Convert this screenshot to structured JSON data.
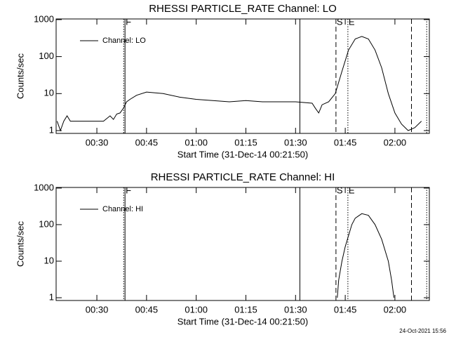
{
  "footer": "24-Oct-2021 15:56",
  "chart_data": [
    {
      "type": "line",
      "title": "RHESSI PARTICLE_RATE Channel: LO",
      "xlabel": "Start Time (31-Dec-14 00:21:50)",
      "ylabel": "Counts/sec",
      "log_y": true,
      "legend": "upper left",
      "x": [
        18,
        19,
        20,
        21,
        22,
        24,
        26,
        28,
        30,
        32,
        34,
        35,
        36,
        37,
        38,
        39,
        40,
        42,
        45,
        50,
        55,
        60,
        65,
        70,
        75,
        80,
        85,
        90,
        95,
        96,
        97,
        98,
        100,
        102,
        104,
        106,
        108,
        110,
        112,
        114,
        116,
        118,
        120,
        122,
        124,
        126,
        128
      ],
      "series": [
        {
          "name": "Channel: LO",
          "color": "#000000",
          "values": [
            1.8,
            1,
            1.8,
            2.5,
            1.8,
            1.8,
            1.8,
            1.8,
            1.8,
            1.8,
            2.5,
            2,
            2.8,
            3,
            4,
            6,
            7,
            9,
            11,
            10,
            8,
            7,
            6.5,
            6,
            6.5,
            6,
            6,
            6,
            5.5,
            4,
            3,
            5,
            6,
            10,
            40,
            150,
            300,
            350,
            300,
            150,
            50,
            10,
            3,
            1.5,
            1,
            1.2,
            1.8
          ]
        }
      ],
      "xlim": [
        17.7,
        130.4
      ],
      "ylim": [
        0.84,
        1040
      ],
      "xticks": [
        {
          "value": 30,
          "label": "00:30"
        },
        {
          "value": 45,
          "label": "00:45"
        },
        {
          "value": 60,
          "label": "01:00"
        },
        {
          "value": 75,
          "label": "01:15"
        },
        {
          "value": 90,
          "label": "01:30"
        },
        {
          "value": 105,
          "label": "01:45"
        },
        {
          "value": 120,
          "label": "02:00"
        }
      ],
      "yticks": [
        1,
        10,
        100,
        1000
      ],
      "annotations": [
        {
          "x": 38.1,
          "style": "dotted"
        },
        {
          "x": 38.5,
          "style": "solid",
          "label": "F"
        },
        {
          "x": 91.3,
          "style": "solid"
        },
        {
          "x": 102.2,
          "style": "dashed",
          "label": "S"
        },
        {
          "x": 105.8,
          "style": "dotted",
          "label": "E"
        },
        {
          "x": 125,
          "style": "dashed"
        },
        {
          "x": 129.6,
          "style": "dotted"
        }
      ]
    },
    {
      "type": "line",
      "title": "RHESSI PARTICLE_RATE Channel: HI",
      "xlabel": "Start Time (31-Dec-14 00:21:50)",
      "ylabel": "Counts/sec",
      "log_y": true,
      "legend": "upper left",
      "x": [
        102.6,
        103,
        104,
        105,
        106,
        107,
        108,
        110,
        112,
        114,
        116,
        118,
        119,
        119.7
      ],
      "series": [
        {
          "name": "Channel: HI",
          "color": "#000000",
          "values": [
            1,
            3,
            10,
            25,
            50,
            100,
            150,
            200,
            180,
            100,
            40,
            10,
            3,
            1
          ]
        }
      ],
      "xlim": [
        17.7,
        130.4
      ],
      "ylim": [
        0.84,
        1040
      ],
      "xticks": [
        {
          "value": 30,
          "label": "00:30"
        },
        {
          "value": 45,
          "label": "00:45"
        },
        {
          "value": 60,
          "label": "01:00"
        },
        {
          "value": 75,
          "label": "01:15"
        },
        {
          "value": 90,
          "label": "01:30"
        },
        {
          "value": 105,
          "label": "01:45"
        },
        {
          "value": 120,
          "label": "02:00"
        }
      ],
      "yticks": [
        1,
        10,
        100,
        1000
      ],
      "annotations": [
        {
          "x": 38.1,
          "style": "dotted"
        },
        {
          "x": 38.5,
          "style": "solid",
          "label": "F"
        },
        {
          "x": 91.3,
          "style": "solid"
        },
        {
          "x": 102.2,
          "style": "dashed",
          "label": "S"
        },
        {
          "x": 105.8,
          "style": "dotted",
          "label": "E"
        },
        {
          "x": 125,
          "style": "dashed"
        },
        {
          "x": 129.6,
          "style": "dotted"
        }
      ]
    }
  ]
}
